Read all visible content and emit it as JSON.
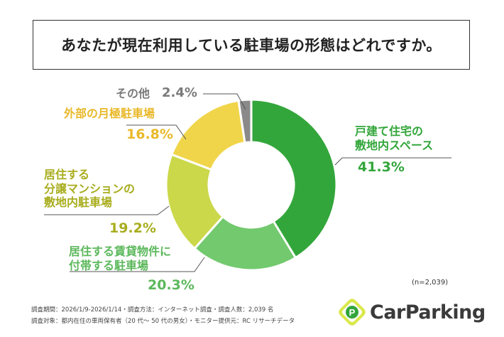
{
  "title": "あなたが現在利用している駐車場の形態はどれですか。",
  "sample_size": "(n=2,039)",
  "footer": {
    "line1": "調査期間：2026/1/9-2026/1/14・調査方法：インターネット調査・調査人数：2,039 名",
    "line2": "調査対象：都内在住の車両保有者（20 代～ 50 代の男女）・モニター提供元：RC リサーチデータ"
  },
  "logo": {
    "text": "CarParking",
    "mark_letter": "P"
  },
  "chart_data": {
    "type": "pie",
    "title": "あなたが現在利用している駐車場の形態はどれですか。",
    "donut": true,
    "start_angle_deg": 0,
    "direction": "clockwise",
    "slices": [
      {
        "label_lines": [
          "戸建て住宅の",
          "敷地内スペース"
        ],
        "value": 41.3,
        "value_label": "41.3%",
        "color": "#33a63b"
      },
      {
        "label_lines": [
          "居住する賃貸物件に",
          "付帯する駐車場"
        ],
        "value": 20.3,
        "value_label": "20.3%",
        "color": "#72c96e"
      },
      {
        "label_lines": [
          "居住する",
          "分譲マンションの",
          "敷地内駐車場"
        ],
        "value": 19.2,
        "value_label": "19.2%",
        "color": "#cbd84a"
      },
      {
        "label_lines": [
          "外部の月極駐車場"
        ],
        "value": 16.8,
        "value_label": "16.8%",
        "color": "#f0d54a"
      },
      {
        "label_lines": [
          "その他"
        ],
        "value": 2.4,
        "value_label": "2.4%",
        "color": "#8a8a8a"
      }
    ]
  },
  "label_colors": [
    "#33a63b",
    "#5cb85c",
    "#a8ad1e",
    "#e9b92a",
    "#7a7a7a"
  ]
}
